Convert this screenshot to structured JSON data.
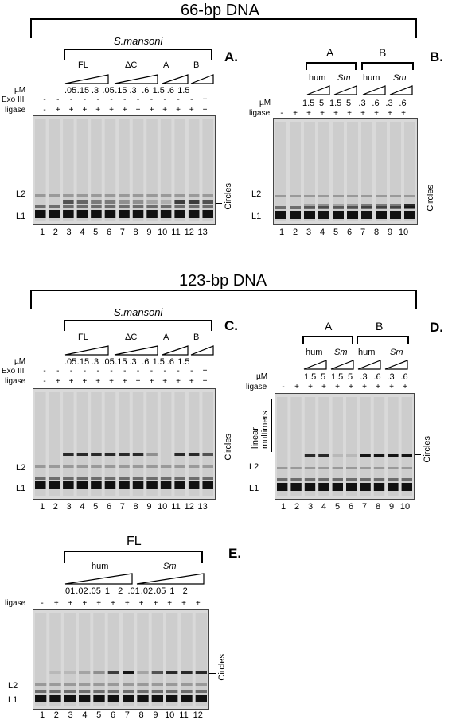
{
  "top_title": "66-bp DNA",
  "mid_title": "123-bp DNA",
  "panel_labels": {
    "A": "A.",
    "B": "B.",
    "C": "C.",
    "D": "D.",
    "E": "E."
  },
  "bracket_labels": {
    "smansoni": "S.mansoni",
    "FL": "FL",
    "dC": "ΔC",
    "A": "A",
    "B": "B",
    "hum": "hum",
    "Sm": "Sm"
  },
  "row_labels": {
    "uM": "µM",
    "exo": "Exo III",
    "ligase": "ligase"
  },
  "band_labels": {
    "L1": "L1",
    "L2": "L2",
    "circles": "Circles",
    "linear": "linear multimers"
  },
  "panelA": {
    "conc": [
      ".05",
      ".15",
      ".3",
      ".05",
      ".15",
      ".3",
      ".6",
      "1.5",
      ".6",
      "1.5"
    ],
    "exo": [
      "-",
      "-",
      "-",
      "-",
      "-",
      "-",
      "-",
      "-",
      "-",
      "-",
      "-",
      "-",
      "+"
    ],
    "ligase": [
      "-",
      "+",
      "+",
      "+",
      "+",
      "+",
      "+",
      "+",
      "+",
      "+",
      "+",
      "+",
      "+"
    ],
    "lanes": [
      "1",
      "2",
      "3",
      "4",
      "5",
      "6",
      "7",
      "8",
      "9",
      "10",
      "11",
      "12",
      "13"
    ]
  },
  "panelB": {
    "conc": [
      "1.5",
      "5",
      "1.5",
      "5",
      ".3",
      ".6",
      ".3",
      ".6"
    ],
    "ligase": [
      "-",
      "+",
      "+",
      "+",
      "+",
      "+",
      "+",
      "+",
      "+",
      "+"
    ],
    "lanes": [
      "1",
      "2",
      "3",
      "4",
      "5",
      "6",
      "7",
      "8",
      "9",
      "10"
    ]
  },
  "panelC": {
    "conc": [
      ".05",
      ".15",
      ".3",
      ".05",
      ".15",
      ".3",
      ".6",
      "1.5",
      ".6",
      "1.5"
    ],
    "exo": [
      "-",
      "-",
      "-",
      "-",
      "-",
      "-",
      "-",
      "-",
      "-",
      "-",
      "-",
      "-",
      "+"
    ],
    "ligase": [
      "-",
      "+",
      "+",
      "+",
      "+",
      "+",
      "+",
      "+",
      "+",
      "+",
      "+",
      "+",
      "+"
    ],
    "lanes": [
      "1",
      "2",
      "3",
      "4",
      "5",
      "6",
      "7",
      "8",
      "9",
      "10",
      "11",
      "12",
      "13"
    ]
  },
  "panelD": {
    "conc": [
      "1.5",
      "5",
      "1.5",
      "5",
      ".3",
      ".6",
      ".3",
      ".6"
    ],
    "ligase": [
      "-",
      "+",
      "+",
      "+",
      "+",
      "+",
      "+",
      "+",
      "+",
      "+"
    ],
    "lanes": [
      "1",
      "2",
      "3",
      "4",
      "5",
      "6",
      "7",
      "8",
      "9",
      "10"
    ]
  },
  "panelE": {
    "conc": [
      ".01",
      ".02",
      ".05",
      "1",
      "2",
      ".01",
      ".02",
      ".05",
      "1",
      "2"
    ],
    "ligase": [
      "-",
      "+",
      "+",
      "+",
      "+",
      "+",
      "+",
      "+",
      "+",
      "+",
      "+",
      "+"
    ],
    "lanes": [
      "1",
      "2",
      "3",
      "4",
      "5",
      "6",
      "7",
      "8",
      "9",
      "10",
      "11",
      "12"
    ]
  }
}
